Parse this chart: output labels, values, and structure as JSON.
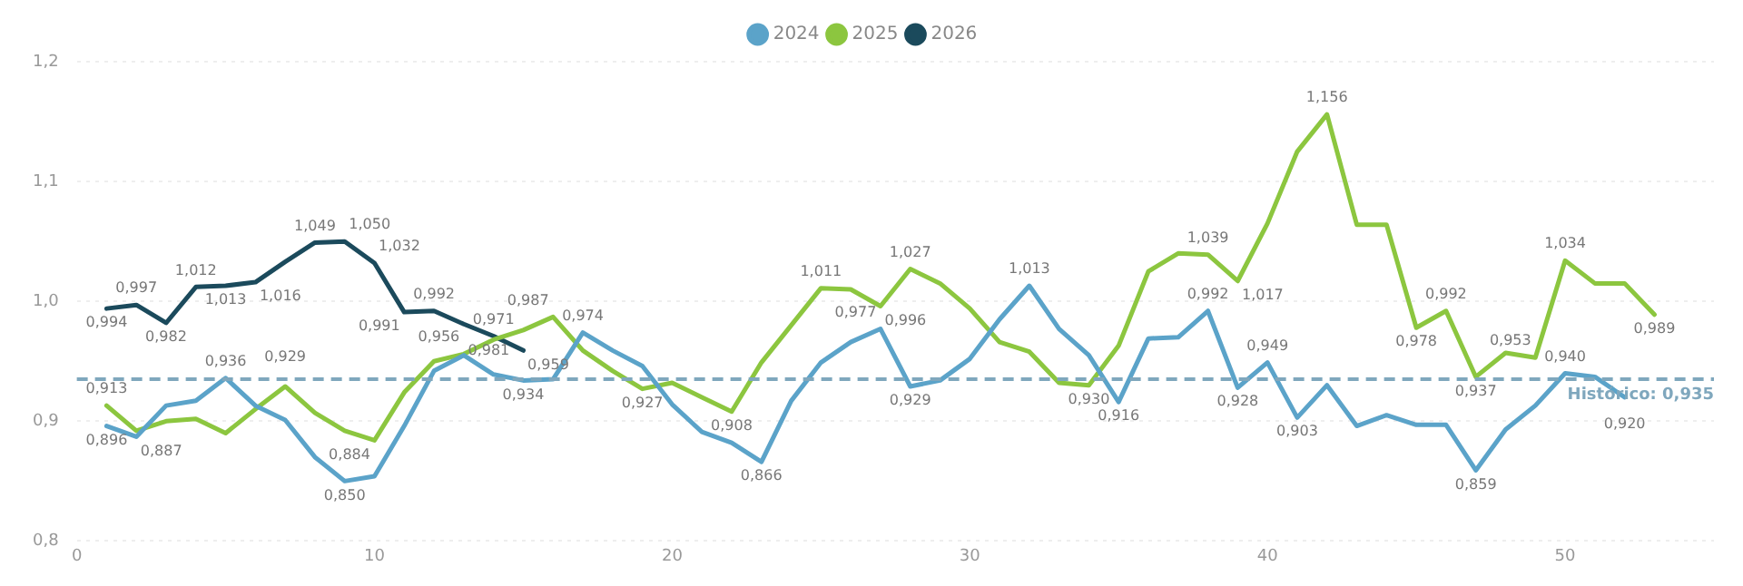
{
  "chart_data": {
    "type": "line",
    "x": [
      1,
      2,
      3,
      4,
      5,
      6,
      7,
      8,
      9,
      10,
      11,
      12,
      13,
      14,
      15,
      16,
      17,
      18,
      19,
      20,
      21,
      22,
      23,
      24,
      25,
      26,
      27,
      28,
      29,
      30,
      31,
      32,
      33,
      34,
      35,
      36,
      37,
      38,
      39,
      40,
      41,
      42,
      43,
      44,
      45,
      46,
      47,
      48,
      49,
      50,
      51,
      52,
      53
    ],
    "xlim": [
      0,
      55
    ],
    "xticks": [
      0,
      10,
      20,
      30,
      40,
      50
    ],
    "ylim": [
      0.8,
      1.2
    ],
    "yticks": [
      {
        "value": 0.8,
        "label": "0,8"
      },
      {
        "value": 0.9,
        "label": "0,9"
      },
      {
        "value": 1.0,
        "label": "1,0"
      },
      {
        "value": 1.1,
        "label": "1,1"
      },
      {
        "value": 1.2,
        "label": "1,2"
      }
    ],
    "grid": "y",
    "legend": "top",
    "marker": "none",
    "line_style": "solid",
    "ref_lines": [
      {
        "axis": "y",
        "value": 0.935,
        "label": "Histórico: 0,935",
        "color": "#7fa7bd",
        "line_style": "dashed"
      }
    ],
    "series": [
      {
        "name": "2024",
        "color": "#5ba3c9",
        "values": [
          0.896,
          0.887,
          0.913,
          0.917,
          0.936,
          0.913,
          0.901,
          0.87,
          0.85,
          0.854,
          0.896,
          0.942,
          0.955,
          0.939,
          0.934,
          0.935,
          0.974,
          0.959,
          0.946,
          0.914,
          0.891,
          0.882,
          0.866,
          0.917,
          0.949,
          0.966,
          0.977,
          0.929,
          0.934,
          0.952,
          0.985,
          1.013,
          0.977,
          0.955,
          0.916,
          0.969,
          0.97,
          0.992,
          0.928,
          0.949,
          0.903,
          0.93,
          0.896,
          0.905,
          0.897,
          0.897,
          0.859,
          0.893,
          0.913,
          0.94,
          0.937,
          0.92,
          null
        ],
        "value_labels": [
          "0,896",
          "0,887",
          null,
          null,
          "0,936",
          null,
          null,
          null,
          "0,850",
          null,
          null,
          null,
          null,
          null,
          "0,934",
          null,
          "0,974",
          null,
          null,
          null,
          null,
          null,
          "0,866",
          null,
          null,
          null,
          "0,977",
          "0,929",
          null,
          null,
          null,
          "1,013",
          null,
          null,
          "0,916",
          null,
          null,
          "0,992",
          "0,928",
          "0,949",
          "0,903",
          null,
          null,
          null,
          null,
          null,
          "0,859",
          null,
          null,
          "0,940",
          null,
          "0,920",
          null
        ]
      },
      {
        "name": "2025",
        "color": "#8cc63f",
        "values": [
          0.913,
          0.892,
          0.9,
          0.902,
          0.89,
          0.91,
          0.929,
          0.907,
          0.892,
          0.884,
          0.924,
          0.95,
          0.956,
          0.968,
          0.976,
          0.987,
          0.959,
          0.942,
          0.927,
          0.932,
          0.92,
          0.908,
          0.949,
          0.98,
          1.011,
          1.01,
          0.996,
          1.027,
          1.015,
          0.994,
          0.966,
          0.958,
          0.932,
          0.93,
          0.963,
          1.025,
          1.04,
          1.039,
          1.017,
          1.065,
          1.125,
          1.156,
          1.064,
          1.064,
          0.978,
          0.992,
          0.937,
          0.957,
          0.953,
          1.034,
          1.015,
          1.015,
          0.989
        ],
        "value_labels": [
          "0,913",
          null,
          null,
          null,
          null,
          null,
          "0,929",
          null,
          null,
          "0,884",
          null,
          null,
          "0,956",
          null,
          null,
          "0,987",
          null,
          null,
          "0,927",
          null,
          null,
          "0,908",
          null,
          null,
          "1,011",
          null,
          "0,996",
          "1,027",
          null,
          null,
          null,
          null,
          null,
          "0,930",
          null,
          null,
          null,
          "1,039",
          "1,017",
          null,
          null,
          "1,156",
          null,
          null,
          "0,978",
          "0,992",
          "0,937",
          null,
          "0,953",
          "1,034",
          null,
          null,
          "0,989"
        ]
      },
      {
        "name": "2026",
        "color": "#1b4a5c",
        "values": [
          0.994,
          0.997,
          0.982,
          1.012,
          1.013,
          1.016,
          1.033,
          1.049,
          1.05,
          1.032,
          0.991,
          0.992,
          0.981,
          0.971,
          0.959,
          null,
          null,
          null,
          null,
          null,
          null,
          null,
          null,
          null,
          null,
          null,
          null,
          null,
          null,
          null,
          null,
          null,
          null,
          null,
          null,
          null,
          null,
          null,
          null,
          null,
          null,
          null,
          null,
          null,
          null,
          null,
          null,
          null,
          null,
          null,
          null,
          null,
          null
        ],
        "value_labels": [
          "0,994",
          "0,997",
          "0,982",
          "1,012",
          "1,013",
          "1,016",
          null,
          "1,049",
          "1,050",
          "1,032",
          "0,991",
          "0,992",
          "0,981",
          "0,971",
          "0,959",
          null,
          null,
          null,
          null,
          null,
          null,
          null,
          null,
          null,
          null,
          null,
          null,
          null,
          null,
          null,
          null,
          null,
          null,
          null,
          null,
          null,
          null,
          null,
          null,
          null,
          null,
          null,
          null,
          null,
          null,
          null,
          null,
          null,
          null,
          null,
          null,
          null,
          null
        ]
      }
    ]
  }
}
